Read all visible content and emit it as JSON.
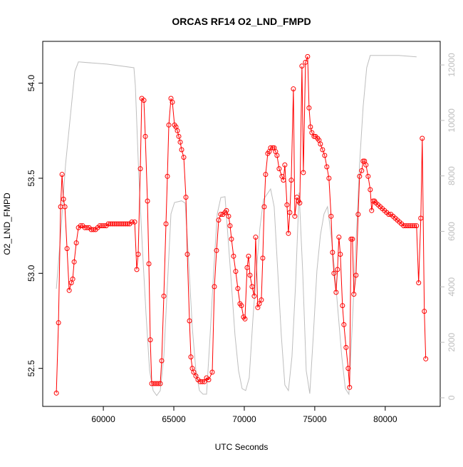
{
  "chart_data": {
    "type": "line",
    "title": "ORCAS RF14 O2_LND_FMPD",
    "x_label": "UTC Seconds",
    "y_label": "O2_LND_FMPD",
    "xlim": [
      55700,
      83900
    ],
    "xticks": [
      60000,
      65000,
      70000,
      75000,
      80000
    ],
    "ylim": [
      52.3,
      54.22
    ],
    "yticks": [
      52.5,
      {
        "value": 53,
        "label": "53.0"
      },
      53.5,
      {
        "value": 54,
        "label": "54.0"
      }
    ],
    "y2lim": [
      -310,
      12850
    ],
    "y2ticks": [
      0,
      2000,
      4000,
      6000,
      8000,
      10000,
      12000
    ],
    "series": [
      {
        "color": "#ff0000",
        "markers": true,
        "x": [
          56667,
          56818,
          56970,
          57071,
          57172,
          57273,
          57424,
          57576,
          57727,
          57828,
          57929,
          58081,
          58232,
          58384,
          58535,
          58687,
          58838,
          58990,
          59141,
          59293,
          59444,
          59596,
          59747,
          59899,
          60050,
          60202,
          60353,
          60505,
          60656,
          60808,
          60959,
          61111,
          61262,
          61414,
          61565,
          61717,
          61868,
          62020,
          62222,
          62373,
          62474,
          62626,
          62727,
          62878,
          62979,
          63131,
          63232,
          63333,
          63434,
          63585,
          63737,
          63888,
          64040,
          64141,
          64292,
          64444,
          64545,
          64646,
          64797,
          64898,
          65050,
          65151,
          65252,
          65353,
          65454,
          65555,
          65706,
          65858,
          65959,
          66110,
          66211,
          66312,
          66413,
          66565,
          66716,
          66868,
          67019,
          67171,
          67322,
          67474,
          67726,
          67878,
          68029,
          68181,
          68332,
          68484,
          68635,
          68736,
          68888,
          68989,
          69090,
          69241,
          69393,
          69544,
          69696,
          69797,
          69948,
          70049,
          70201,
          70302,
          70403,
          70554,
          70706,
          70807,
          70958,
          71059,
          71211,
          71312,
          71413,
          71514,
          71665,
          71766,
          71867,
          72019,
          72120,
          72221,
          72322,
          72473,
          72675,
          72776,
          72877,
          73029,
          73130,
          73231,
          73332,
          73483,
          73584,
          73736,
          73837,
          73938,
          74089,
          74190,
          74342,
          74493,
          74594,
          74695,
          74796,
          74948,
          75049,
          75200,
          75301,
          75402,
          75554,
          75705,
          75857,
          76008,
          76160,
          76261,
          76362,
          76513,
          76614,
          76715,
          76816,
          76968,
          77069,
          77220,
          77372,
          77473,
          77574,
          77675,
          77776,
          77927,
          78079,
          78180,
          78331,
          78432,
          78533,
          78634,
          78786,
          78937,
          79038,
          79139,
          79240,
          79341,
          79493,
          79644,
          79796,
          79947,
          80099,
          80250,
          80402,
          80553,
          80705,
          80856,
          81008,
          81159,
          81311,
          81462,
          81614,
          81765,
          81917,
          82068,
          82220,
          82371,
          82523,
          82624,
          82775,
          82876
        ],
        "values": [
          52.37,
          52.74,
          53.35,
          53.52,
          53.39,
          53.35,
          53.13,
          52.91,
          52.95,
          52.97,
          53.06,
          53.16,
          53.24,
          53.25,
          53.25,
          53.24,
          53.24,
          53.24,
          53.23,
          53.23,
          53.23,
          53.24,
          53.25,
          53.25,
          53.25,
          53.25,
          53.26,
          53.26,
          53.26,
          53.26,
          53.26,
          53.26,
          53.26,
          53.26,
          53.26,
          53.26,
          53.26,
          53.27,
          53.27,
          53.02,
          53.1,
          53.55,
          53.92,
          53.91,
          53.72,
          53.38,
          53.05,
          52.65,
          52.42,
          52.42,
          52.42,
          52.42,
          52.42,
          52.54,
          52.88,
          53.26,
          53.51,
          53.78,
          53.92,
          53.9,
          53.78,
          53.77,
          53.75,
          53.72,
          53.69,
          53.65,
          53.61,
          53.4,
          53.1,
          52.75,
          52.56,
          52.5,
          52.48,
          52.46,
          52.44,
          52.43,
          52.43,
          52.43,
          52.45,
          52.44,
          52.48,
          52.93,
          53.12,
          53.28,
          53.31,
          53.31,
          53.32,
          53.33,
          53.3,
          53.25,
          53.18,
          53.09,
          53.01,
          52.92,
          52.84,
          52.83,
          52.77,
          52.76,
          53.03,
          53.09,
          52.99,
          52.93,
          52.88,
          53.19,
          52.82,
          52.84,
          52.86,
          53.08,
          53.35,
          53.52,
          53.63,
          53.64,
          53.66,
          53.66,
          53.66,
          53.64,
          53.62,
          53.55,
          53.51,
          53.49,
          53.57,
          53.36,
          53.21,
          53.32,
          53.49,
          53.97,
          53.3,
          53.4,
          53.38,
          53.37,
          54.09,
          53.53,
          54.11,
          54.14,
          53.87,
          53.77,
          53.74,
          53.72,
          53.72,
          53.71,
          53.7,
          53.68,
          53.65,
          53.62,
          53.56,
          53.5,
          53.3,
          53.11,
          53.0,
          52.9,
          53.02,
          53.19,
          53.1,
          52.83,
          52.73,
          52.61,
          52.5,
          52.4,
          53.18,
          53.18,
          52.89,
          52.99,
          53.31,
          53.51,
          53.54,
          53.59,
          53.59,
          53.57,
          53.51,
          53.44,
          53.33,
          53.38,
          53.38,
          53.37,
          53.36,
          53.35,
          53.34,
          53.33,
          53.32,
          53.31,
          53.31,
          53.3,
          53.29,
          53.28,
          53.27,
          53.26,
          53.25,
          53.25,
          53.25,
          53.25,
          53.25,
          53.25,
          53.25,
          52.95,
          53.29,
          53.71,
          52.8,
          52.55
        ]
      },
      {
        "color": "#bebebe",
        "axis": "y2",
        "markers": false,
        "x": [
          56667,
          56970,
          57323,
          57727,
          57980,
          58232,
          60252,
          62171,
          62272,
          62525,
          62777,
          63030,
          63282,
          63535,
          63787,
          64040,
          64292,
          64545,
          64797,
          65050,
          65555,
          65807,
          66060,
          66312,
          66565,
          66817,
          67070,
          67322,
          67575,
          67827,
          68080,
          68332,
          68635,
          68837,
          69090,
          69342,
          69595,
          69847,
          70100,
          70352,
          70605,
          70857,
          71110,
          71362,
          71867,
          72120,
          72372,
          72625,
          72877,
          73130,
          73382,
          73635,
          73887,
          74140,
          74392,
          74645,
          74897,
          75150,
          75402,
          75655,
          75907,
          76160,
          76412,
          76665,
          76917,
          77170,
          77422,
          77675,
          77927,
          78180,
          78432,
          78685,
          78937,
          80957,
          82220
        ],
        "values": [
          3930,
          5860,
          8430,
          10490,
          11770,
          12110,
          12030,
          11900,
          11260,
          7920,
          5350,
          3030,
          980,
          260,
          80,
          260,
          1490,
          4060,
          6630,
          7040,
          7100,
          7020,
          4830,
          2520,
          980,
          260,
          130,
          130,
          2260,
          4580,
          6630,
          7220,
          7250,
          5860,
          4060,
          2260,
          980,
          330,
          260,
          720,
          2780,
          4580,
          6120,
          7150,
          7530,
          6890,
          4580,
          2260,
          460,
          260,
          1490,
          4060,
          7400,
          4580,
          980,
          150,
          2260,
          4580,
          5860,
          6630,
          6890,
          5860,
          4580,
          3030,
          1490,
          330,
          130,
          2780,
          5600,
          8430,
          10490,
          11900,
          12340,
          12340,
          12290
        ]
      }
    ]
  }
}
